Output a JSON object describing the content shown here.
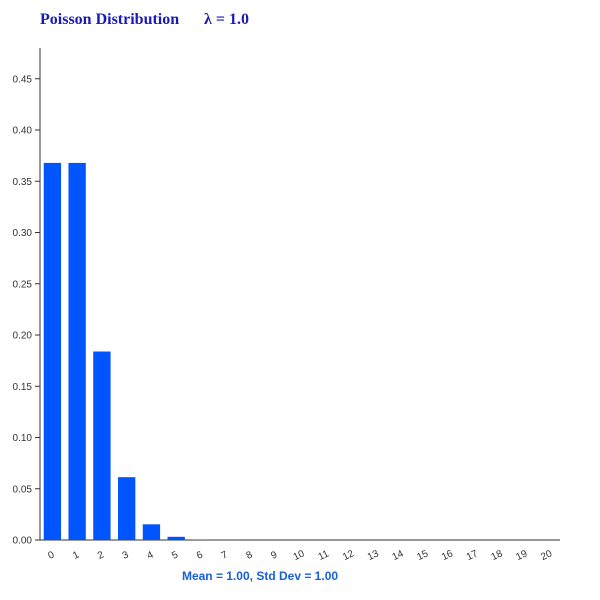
{
  "chart_data": {
    "type": "bar",
    "title": "Poisson Distribution",
    "subtitle": "λ = 1.0",
    "annotation": "Mean = 1.00, Std Dev = 1.00",
    "categories": [
      "0",
      "1",
      "2",
      "3",
      "4",
      "5",
      "6",
      "7",
      "8",
      "9",
      "10",
      "11",
      "12",
      "13",
      "14",
      "15",
      "16",
      "17",
      "18",
      "19",
      "20"
    ],
    "values": [
      0.3679,
      0.3679,
      0.1839,
      0.0613,
      0.0153,
      0.0031,
      0.0005,
      0.0001,
      0,
      0,
      0,
      0,
      0,
      0,
      0,
      0,
      0,
      0,
      0,
      0,
      0
    ],
    "color": "#0055ff",
    "ylim": [
      0,
      0.48
    ],
    "yticks": [
      {
        "value": 0,
        "label": "0.00"
      },
      {
        "value": 0.05,
        "label": "0.05"
      },
      {
        "value": 0.1,
        "label": "0.10"
      },
      {
        "value": 0.15,
        "label": "0.15"
      },
      {
        "value": 0.2,
        "label": "0.20"
      },
      {
        "value": 0.25,
        "label": "0.25"
      },
      {
        "value": 0.3,
        "label": "0.30"
      },
      {
        "value": 0.35,
        "label": "0.35"
      },
      {
        "value": 0.4,
        "label": "0.40"
      },
      {
        "value": 0.45,
        "label": "0.45"
      }
    ]
  }
}
